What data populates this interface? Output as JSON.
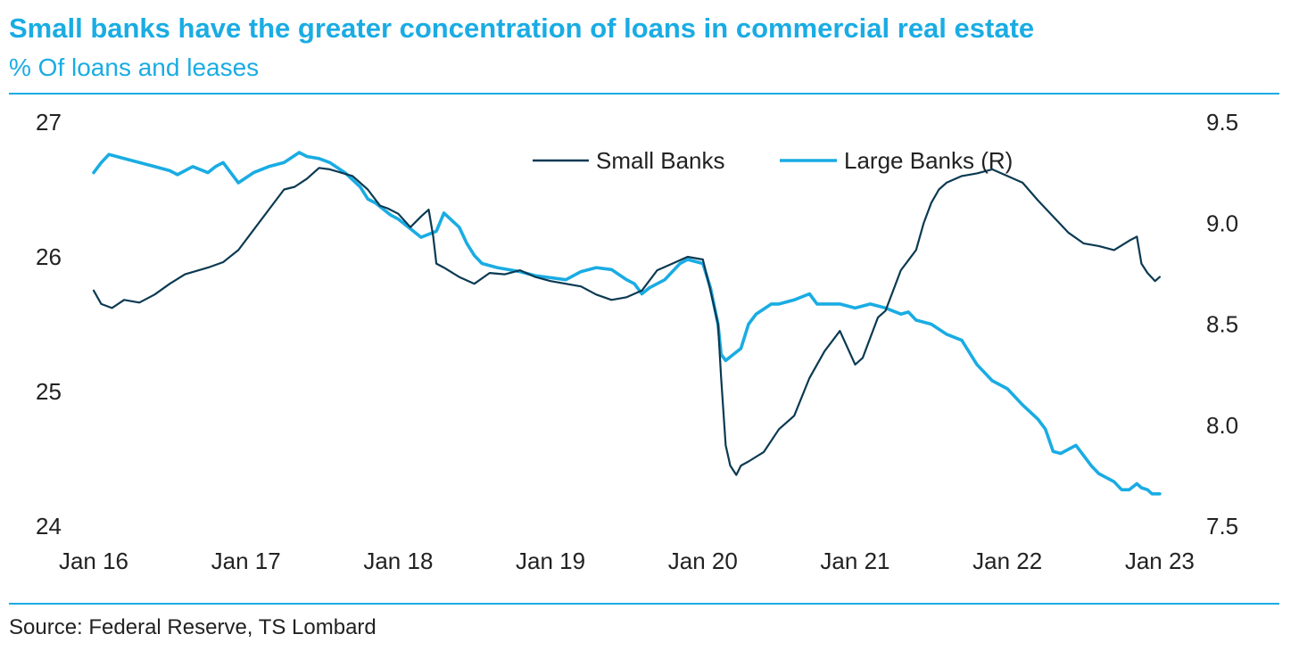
{
  "header": {
    "title": "Small banks have the greater concentration of loans in commercial real estate",
    "subtitle": "% Of loans and leases"
  },
  "footer": {
    "source": "Source: Federal Reserve, TS Lombard"
  },
  "colors": {
    "accent": "#1aace3",
    "small_banks": "#0b3a52",
    "large_banks": "#1aace3",
    "text": "#222222"
  },
  "chart_data": {
    "type": "line",
    "title": "Small banks have the greater concentration of loans in commercial real estate",
    "subtitle": "% Of loans and leases",
    "xlabel": "",
    "ylabel": "",
    "x_ticks": [
      "Jan 16",
      "Jan 17",
      "Jan 18",
      "Jan 19",
      "Jan 20",
      "Jan 21",
      "Jan 22",
      "Jan 23"
    ],
    "x_range": [
      2016.0,
      2023.2
    ],
    "y_left": {
      "range": [
        24,
        27
      ],
      "ticks": [
        "24",
        "25",
        "26",
        "27"
      ]
    },
    "y_right": {
      "range": [
        7.5,
        9.5
      ],
      "ticks": [
        "7.5",
        "8.0",
        "8.5",
        "9.0",
        "9.5"
      ]
    },
    "legend": {
      "position": "top-right",
      "entries": [
        "Small Banks",
        "Large Banks (R)"
      ]
    },
    "grid": false,
    "series": [
      {
        "name": "Small Banks",
        "axis": "left",
        "x": [
          2016.0,
          2016.05,
          2016.12,
          2016.2,
          2016.3,
          2016.4,
          2016.5,
          2016.6,
          2016.75,
          2016.85,
          2016.95,
          2017.05,
          2017.15,
          2017.25,
          2017.32,
          2017.4,
          2017.48,
          2017.55,
          2017.7,
          2017.8,
          2017.88,
          2017.93,
          2018.0,
          2018.08,
          2018.15,
          2018.2,
          2018.23,
          2018.25,
          2018.3,
          2018.4,
          2018.5,
          2018.6,
          2018.7,
          2018.8,
          2018.9,
          2019.0,
          2019.1,
          2019.2,
          2019.3,
          2019.4,
          2019.5,
          2019.6,
          2019.7,
          2019.8,
          2019.9,
          2020.0,
          2020.05,
          2020.1,
          2020.12,
          2020.15,
          2020.18,
          2020.22,
          2020.25,
          2020.3,
          2020.4,
          2020.5,
          2020.6,
          2020.7,
          2020.8,
          2020.9,
          2021.0,
          2021.05,
          2021.1,
          2021.15,
          2021.2,
          2021.3,
          2021.4,
          2021.45,
          2021.5,
          2021.55,
          2021.6,
          2021.7,
          2021.8,
          2021.9,
          2022.0,
          2022.1,
          2022.2,
          2022.3,
          2022.4,
          2022.5,
          2022.6,
          2022.7,
          2022.8,
          2022.85,
          2022.88,
          2022.92,
          2022.97,
          2023.0
        ],
        "values": [
          25.75,
          25.65,
          25.62,
          25.68,
          25.66,
          25.72,
          25.8,
          25.87,
          25.92,
          25.96,
          26.05,
          26.2,
          26.35,
          26.5,
          26.52,
          26.58,
          26.66,
          26.65,
          26.6,
          26.5,
          26.38,
          26.36,
          26.32,
          26.22,
          26.3,
          26.35,
          26.15,
          25.95,
          25.92,
          25.85,
          25.8,
          25.88,
          25.87,
          25.9,
          25.85,
          25.82,
          25.8,
          25.78,
          25.72,
          25.68,
          25.7,
          25.75,
          25.9,
          25.95,
          26.0,
          25.98,
          25.75,
          25.5,
          25.1,
          24.6,
          24.45,
          24.38,
          24.45,
          24.48,
          24.55,
          24.72,
          24.82,
          25.1,
          25.3,
          25.45,
          25.2,
          25.25,
          25.4,
          25.55,
          25.6,
          25.9,
          26.05,
          26.25,
          26.4,
          26.5,
          26.55,
          26.6,
          26.62,
          26.65,
          26.6,
          26.55,
          26.42,
          26.3,
          26.18,
          26.1,
          26.08,
          26.05,
          26.12,
          26.15,
          25.95,
          25.88,
          25.82,
          25.85
        ]
      },
      {
        "name": "Large Banks (R)",
        "axis": "right",
        "x": [
          2016.0,
          2016.05,
          2016.1,
          2016.2,
          2016.3,
          2016.4,
          2016.5,
          2016.55,
          2016.65,
          2016.75,
          2016.8,
          2016.85,
          2016.95,
          2017.05,
          2017.15,
          2017.25,
          2017.35,
          2017.4,
          2017.48,
          2017.55,
          2017.65,
          2017.75,
          2017.8,
          2017.85,
          2017.95,
          2018.0,
          2018.1,
          2018.15,
          2018.25,
          2018.3,
          2018.4,
          2018.45,
          2018.5,
          2018.55,
          2018.65,
          2018.8,
          2018.9,
          2019.0,
          2019.1,
          2019.2,
          2019.3,
          2019.4,
          2019.5,
          2019.55,
          2019.6,
          2019.65,
          2019.75,
          2019.8,
          2019.85,
          2019.9,
          2020.0,
          2020.05,
          2020.1,
          2020.12,
          2020.15,
          2020.2,
          2020.25,
          2020.3,
          2020.35,
          2020.45,
          2020.5,
          2020.6,
          2020.7,
          2020.75,
          2020.8,
          2020.9,
          2021.0,
          2021.1,
          2021.2,
          2021.3,
          2021.35,
          2021.4,
          2021.5,
          2021.6,
          2021.7,
          2021.8,
          2021.9,
          2022.0,
          2022.1,
          2022.2,
          2022.25,
          2022.3,
          2022.35,
          2022.45,
          2022.55,
          2022.6,
          2022.7,
          2022.75,
          2022.8,
          2022.85,
          2022.88,
          2022.92,
          2022.95,
          2023.0
        ],
        "values": [
          9.25,
          9.3,
          9.34,
          9.32,
          9.3,
          9.28,
          9.26,
          9.24,
          9.28,
          9.25,
          9.28,
          9.3,
          9.2,
          9.25,
          9.28,
          9.3,
          9.35,
          9.33,
          9.32,
          9.3,
          9.25,
          9.18,
          9.12,
          9.1,
          9.04,
          9.02,
          8.96,
          8.93,
          8.96,
          9.05,
          8.98,
          8.9,
          8.84,
          8.8,
          8.78,
          8.76,
          8.74,
          8.73,
          8.72,
          8.76,
          8.78,
          8.77,
          8.72,
          8.7,
          8.65,
          8.68,
          8.72,
          8.76,
          8.8,
          8.82,
          8.8,
          8.68,
          8.5,
          8.35,
          8.32,
          8.35,
          8.38,
          8.5,
          8.55,
          8.6,
          8.6,
          8.62,
          8.65,
          8.6,
          8.6,
          8.6,
          8.58,
          8.6,
          8.58,
          8.55,
          8.56,
          8.52,
          8.5,
          8.45,
          8.42,
          8.3,
          8.22,
          8.18,
          8.1,
          8.03,
          7.98,
          7.87,
          7.86,
          7.9,
          7.8,
          7.76,
          7.72,
          7.68,
          7.68,
          7.71,
          7.69,
          7.68,
          7.66,
          7.66
        ]
      }
    ]
  }
}
